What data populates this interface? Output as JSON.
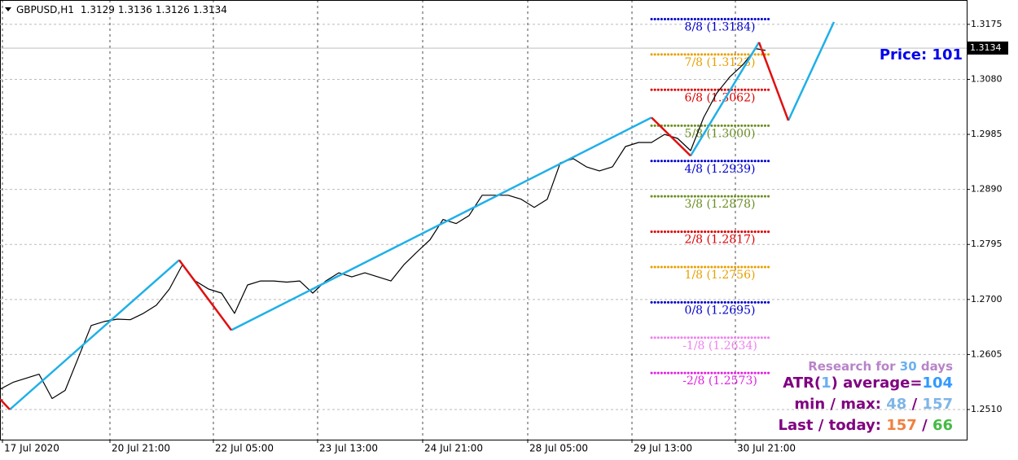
{
  "chart_data": {
    "type": "line",
    "symbol": "GBPUSD,H1",
    "ohlc": [
      1.3129,
      1.3136,
      1.3126,
      1.3134
    ],
    "last_price": 1.3134,
    "price_note": "Price: 101",
    "xlim": [
      0,
      296.75
    ],
    "ylim": [
      1.2458,
      1.3217
    ],
    "xticks": [
      {
        "value": 0.75,
        "label": "17 Jul 2020"
      },
      {
        "value": 33.75,
        "label": "20 Jul 21:00"
      },
      {
        "value": 65.5,
        "label": "22 Jul 05:00"
      },
      {
        "value": 97.5,
        "label": "23 Jul 13:00"
      },
      {
        "value": 129.75,
        "label": "24 Jul 21:00"
      },
      {
        "value": 162,
        "label": "28 Jul 05:00"
      },
      {
        "value": 194,
        "label": "29 Jul 13:00"
      },
      {
        "value": 225.75,
        "label": "30 Jul 21:00"
      }
    ],
    "yticks": [
      1.3175,
      {
        "value": 1.308,
        "label": "1.3080"
      },
      1.2985,
      {
        "value": 1.289,
        "label": "1.2890"
      },
      1.2795,
      {
        "value": 1.27,
        "label": "1.2700"
      },
      1.2605,
      {
        "value": 1.251,
        "label": "1.2510"
      }
    ],
    "grid": true,
    "series": [
      {
        "name": "GBPUSD",
        "color": "#000000",
        "width": 1.2,
        "x": [
          0,
          4,
          8,
          12,
          16,
          20,
          24,
          28,
          32,
          36,
          40,
          44,
          48,
          52,
          56,
          60,
          64,
          68,
          72,
          76,
          80,
          84,
          88,
          92,
          96,
          100,
          104,
          108,
          112,
          116,
          120,
          124,
          128,
          132,
          136,
          140,
          144,
          148,
          152,
          156,
          160,
          164,
          168,
          172,
          176,
          180,
          184,
          188,
          192,
          196,
          200,
          204,
          208,
          212,
          216,
          220,
          224,
          228,
          232,
          235
        ],
        "values": [
          1.2545,
          1.2557,
          1.2564,
          1.2571,
          1.2529,
          1.2543,
          1.2599,
          1.2655,
          1.2662,
          1.2666,
          1.2665,
          1.2676,
          1.269,
          1.2718,
          1.276,
          1.2732,
          1.2718,
          1.2711,
          1.2676,
          1.2725,
          1.2732,
          1.2732,
          1.273,
          1.2732,
          1.2711,
          1.2732,
          1.2746,
          1.2739,
          1.2746,
          1.2739,
          1.2732,
          1.276,
          1.2782,
          1.2803,
          1.2838,
          1.2831,
          1.2845,
          1.288,
          1.288,
          1.288,
          1.2873,
          1.2859,
          1.2873,
          1.2936,
          1.2943,
          1.2929,
          1.2922,
          1.2929,
          1.2964,
          1.2971,
          1.2971,
          1.2985,
          1.2978,
          1.2957,
          1.3014,
          1.3056,
          1.3084,
          1.3105,
          1.3133,
          1.313
        ]
      },
      {
        "name": "Zigzag up",
        "color": "#1fb0e8",
        "width": 2.5,
        "x": [
          3,
          55,
          null,
          71,
          200,
          null,
          212,
          233,
          null,
          242,
          256
        ],
        "values": [
          1.251,
          1.2768,
          null,
          1.2647,
          1.3014,
          null,
          1.2948,
          1.3144,
          null,
          1.3009,
          1.3179
        ]
      },
      {
        "name": "Zigzag down",
        "color": "#e01010",
        "width": 2.5,
        "x": [
          0,
          3,
          null,
          55,
          71,
          null,
          200,
          212,
          null,
          233,
          242
        ],
        "values": [
          1.2528,
          1.251,
          null,
          1.2768,
          1.2647,
          null,
          1.3014,
          1.2948,
          null,
          1.3144,
          1.3009
        ]
      }
    ],
    "levels": [
      {
        "label": "8/8 (1.3184)",
        "value": 1.3184,
        "color": "#0000cc"
      },
      {
        "label": "7/8 (1.3123)",
        "value": 1.3123,
        "color": "#e8a000"
      },
      {
        "label": "6/8 (1.3062)",
        "value": 1.3062,
        "color": "#dd0000"
      },
      {
        "label": "5/8 (1.3000)",
        "value": 1.3,
        "color": "#6b8e23"
      },
      {
        "label": "4/8 (1.2939)",
        "value": 1.2939,
        "color": "#0000cc"
      },
      {
        "label": "3/8 (1.2878)",
        "value": 1.2878,
        "color": "#6b8e23"
      },
      {
        "label": "2/8 (1.2817)",
        "value": 1.2817,
        "color": "#dd0000"
      },
      {
        "label": "1/8 (1.2756)",
        "value": 1.2756,
        "color": "#e8a000"
      },
      {
        "label": "0/8 (1.2695)",
        "value": 1.2695,
        "color": "#0000cc"
      },
      {
        "label": "-1/8 (1.2634)",
        "value": 1.2634,
        "color": "#ee82ee"
      },
      {
        "label": "-2/8 (1.2573)",
        "value": 1.2573,
        "color": "#e020e0"
      }
    ],
    "info": [
      [
        {
          "text": "Research for ",
          "color": "#b784c8"
        },
        {
          "text": "30",
          "color": "#6cb0f0"
        },
        {
          "text": " days",
          "color": "#b784c8"
        }
      ],
      [
        {
          "text": "ATR(",
          "color": "#800080"
        },
        {
          "text": "1",
          "color": "#6cb0f0"
        },
        {
          "text": ") average=",
          "color": "#800080"
        },
        {
          "text": "104",
          "color": "#3399ff"
        }
      ],
      [
        {
          "text": "min / max: ",
          "color": "#800080"
        },
        {
          "text": "48",
          "color": "#7fb5e8"
        },
        {
          "text": " / ",
          "color": "#800080"
        },
        {
          "text": "157",
          "color": "#7fb5e8"
        }
      ],
      [
        {
          "text": "Last / today: ",
          "color": "#800080"
        },
        {
          "text": "157",
          "color": "#f08040"
        },
        {
          "text": " / ",
          "color": "#800080"
        },
        {
          "text": "66",
          "color": "#44bb44"
        }
      ]
    ]
  }
}
